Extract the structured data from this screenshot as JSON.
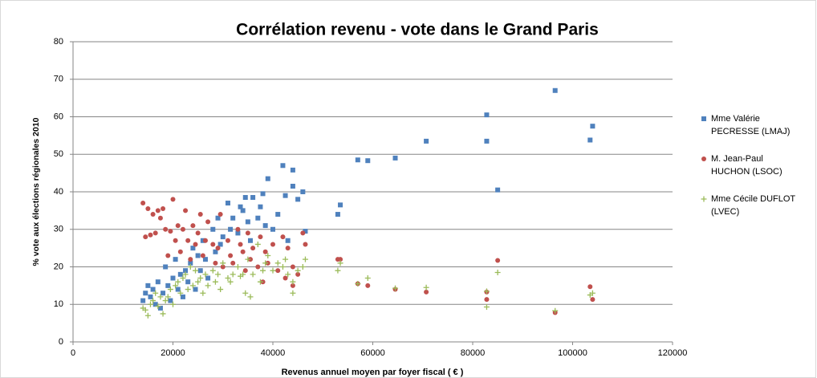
{
  "chart_data": {
    "type": "scatter",
    "title": "Corrélation revenu - vote dans le Grand Paris",
    "x_label": "Revenus annuel moyen par foyer fiscal ( € )",
    "y_label": "% vote aux élections régionales  2010",
    "xlim": [
      0,
      120000
    ],
    "xticks": [
      0,
      20000,
      40000,
      60000,
      80000,
      100000,
      120000
    ],
    "ylim": [
      0,
      80
    ],
    "yticks": [
      0,
      10,
      20,
      30,
      40,
      50,
      60,
      70,
      80
    ],
    "grid": true,
    "legend": "right",
    "x": [
      14000,
      14500,
      15000,
      15500,
      16000,
      16500,
      17000,
      17500,
      18000,
      18500,
      19000,
      19500,
      20000,
      20500,
      21000,
      21500,
      22000,
      22500,
      23000,
      23500,
      24000,
      24500,
      25000,
      25500,
      26000,
      26500,
      27000,
      28000,
      28500,
      29000,
      29500,
      30000,
      31000,
      31500,
      32000,
      33000,
      33500,
      34000,
      34500,
      35000,
      35500,
      36000,
      37000,
      37500,
      38000,
      38500,
      39000,
      40000,
      41000,
      42000,
      42500,
      43000,
      44000,
      44000,
      45000,
      46000,
      46500,
      53000,
      53500,
      57000,
      59000,
      64500,
      70700,
      82800,
      82800,
      85000,
      96500,
      103500,
      104000
    ],
    "series": [
      {
        "name": "Mme Valérie PECRESSE (LMAJ)",
        "color": "#4f81bd",
        "marker": "square",
        "values": [
          11,
          13,
          15,
          12,
          14,
          10,
          16,
          9,
          13,
          20,
          15,
          11,
          17,
          22,
          14,
          18,
          12,
          19,
          16,
          21,
          25,
          14,
          23,
          19,
          27,
          22,
          17,
          30,
          24,
          33,
          26,
          28,
          37,
          30,
          33,
          29,
          36,
          35,
          38.5,
          32,
          27,
          38.5,
          33,
          36,
          39.5,
          31,
          43.5,
          30,
          34,
          47,
          39,
          27,
          45.8,
          41.5,
          38,
          40,
          29.5,
          34,
          36.5,
          48.5,
          48.3,
          49,
          53.5,
          60.5,
          53.5,
          40.5,
          67,
          53.8,
          57.5
        ]
      },
      {
        "name": "M. Jean-Paul HUCHON (LSOC)",
        "color": "#c0504d",
        "marker": "circle",
        "values": [
          37,
          28,
          35.5,
          28.5,
          34,
          29,
          35,
          33,
          35.5,
          30,
          23,
          29.5,
          38,
          27,
          31,
          24,
          30,
          35,
          27,
          22,
          31,
          26,
          29,
          34,
          23,
          27,
          32,
          26,
          21,
          25,
          34,
          20,
          27,
          23,
          21,
          30,
          26,
          24,
          19,
          29,
          22,
          25,
          20,
          28,
          16,
          24,
          21,
          26,
          19,
          28,
          17,
          25,
          20,
          15,
          18,
          29,
          26,
          22,
          22,
          15.5,
          15,
          14,
          13.3,
          13.3,
          11.3,
          21.7,
          7.8,
          14.7,
          11.3
        ]
      },
      {
        "name": "Mme Cécile DUFLOT (LVEC)",
        "color": "#9bbb59",
        "marker": "plus",
        "values": [
          9,
          8.5,
          7,
          10,
          11,
          13,
          9.5,
          12,
          7.5,
          11,
          12,
          14,
          10,
          15,
          16,
          13,
          17,
          18,
          14,
          20,
          15,
          19,
          16,
          17,
          13,
          18,
          15,
          19,
          16,
          18,
          14,
          21,
          17,
          16,
          18,
          20,
          17.5,
          18,
          13,
          22,
          12,
          18,
          26,
          16,
          19,
          21,
          23,
          19,
          21,
          20,
          22,
          18,
          16,
          13,
          19,
          20,
          22,
          19,
          21,
          15.5,
          17,
          14.3,
          14.5,
          13.5,
          9.3,
          18.5,
          8.3,
          12.5,
          13
        ]
      }
    ]
  }
}
